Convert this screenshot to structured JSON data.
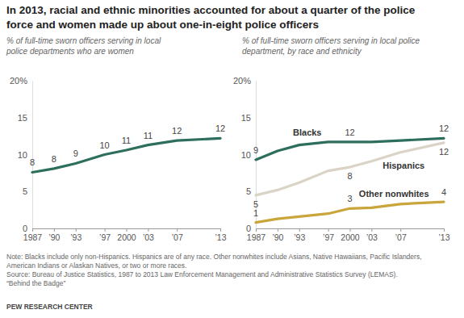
{
  "title": [
    "In 2013, racial and ethnic minorities accounted for about a quarter of the police",
    "force and women made up about one-in-eight police officers"
  ],
  "chart_data": [
    {
      "type": "line",
      "subtitle": [
        "% of full-time sworn officers serving in local",
        "police departments who are women"
      ],
      "x": [
        1987,
        1990,
        1993,
        1997,
        2000,
        2003,
        2007,
        2013
      ],
      "values": [
        7.6,
        8.1,
        8.8,
        10,
        10.6,
        11.3,
        11.9,
        12.2
      ],
      "value_labels": [
        "8",
        "8",
        "9",
        "10",
        "11",
        "11",
        "12",
        "12"
      ],
      "color": "#2d6e5c",
      "data_labels": true,
      "grid": false,
      "xlim": [
        1987,
        2013
      ],
      "xticks": [
        1987,
        {
          "value": 1990,
          "label": "’90"
        },
        {
          "value": 1993,
          "label": "’93"
        },
        {
          "value": 1997,
          "label": "’97"
        },
        2000,
        {
          "value": 2003,
          "label": "’03"
        },
        {
          "value": 2007,
          "label": "’07"
        },
        {
          "value": 2013,
          "label": "’13"
        }
      ],
      "ylim": [
        0,
        20
      ],
      "yticks": [
        0,
        5,
        10,
        15,
        {
          "value": 20,
          "label": "20%"
        }
      ]
    },
    {
      "type": "line",
      "subtitle": [
        "% of full-time sworn officers serving in local police",
        "department, by race and ethnicity"
      ],
      "x": [
        1987,
        1990,
        1993,
        1997,
        2000,
        2003,
        2007,
        2013
      ],
      "series": [
        {
          "name": "Blacks",
          "color": "#2d6e5c",
          "values": [
            9.3,
            10.5,
            11.3,
            11.7,
            11.7,
            11.7,
            11.9,
            12.2
          ],
          "value_labels": [
            "9",
            null,
            null,
            null,
            "12",
            null,
            null,
            "12"
          ]
        },
        {
          "name": "Hispanics",
          "color": "#d9d4c5",
          "values": [
            4.5,
            5.2,
            6.2,
            7.8,
            8.3,
            9.1,
            10.3,
            11.6
          ],
          "value_labels": [
            "5",
            null,
            null,
            null,
            "8",
            null,
            null,
            "12"
          ]
        },
        {
          "name": "Other nonwhites",
          "color": "#c9a53c",
          "values": [
            0.8,
            1.3,
            1.6,
            2.0,
            2.7,
            2.8,
            3.3,
            3.6
          ],
          "value_labels": [
            "1",
            null,
            null,
            null,
            "3",
            null,
            null,
            "4"
          ]
        }
      ],
      "data_labels": true,
      "grid": false,
      "xlim": [
        1987,
        2013
      ],
      "xticks": [
        1987,
        {
          "value": 1990,
          "label": "’90"
        },
        {
          "value": 1993,
          "label": "’93"
        },
        {
          "value": 1997,
          "label": "’97"
        },
        2000,
        {
          "value": 2003,
          "label": "’03"
        },
        {
          "value": 2007,
          "label": "’07"
        },
        {
          "value": 2013,
          "label": "’13"
        }
      ],
      "ylim": [
        0,
        20
      ],
      "yticks": [
        0,
        5,
        10,
        15,
        {
          "value": 20,
          "label": "20%"
        }
      ]
    }
  ],
  "notes": [
    "Note: Blacks include only non-Hispanics. Hispanics are of any race. Other nonwhites include Asians, Native Hawaiians, Pacific Islanders,",
    "American Indians or Alaskan Natives, or two or more races.",
    "Source: Bureau of Justice Statistics, 1987 to 2013 Law Enforcement Management and Administrative Statistics Survey (LEMAS).",
    "“Behind the Badge”"
  ],
  "credit": "PEW RESEARCH CENTER"
}
